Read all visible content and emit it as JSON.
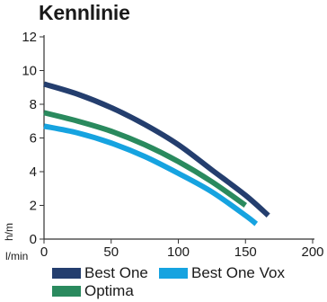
{
  "chart_data": {
    "type": "line",
    "title": "Kennlinie",
    "ylabel": "h/m",
    "xlabel": "l/min",
    "xlim": [
      0,
      200
    ],
    "ylim": [
      0,
      12
    ],
    "xticks": [
      0,
      50,
      100,
      150,
      200
    ],
    "yticks": [
      0,
      2,
      4,
      6,
      8,
      10,
      12
    ],
    "grid": false,
    "legend_position": "bottom",
    "series": [
      {
        "name": "Best One",
        "color": "#243e6e",
        "x": [
          0,
          25,
          50,
          75,
          100,
          125,
          150,
          167
        ],
        "y": [
          9.2,
          8.6,
          7.8,
          6.8,
          5.6,
          4.1,
          2.6,
          1.4
        ]
      },
      {
        "name": "Best One Vox",
        "color": "#16a3e0",
        "x": [
          0,
          25,
          50,
          75,
          100,
          125,
          150,
          158
        ],
        "y": [
          6.7,
          6.3,
          5.7,
          4.9,
          3.9,
          2.8,
          1.4,
          0.9
        ]
      },
      {
        "name": "Optima",
        "color": "#2a8a5e",
        "x": [
          0,
          25,
          50,
          75,
          100,
          125,
          150
        ],
        "y": [
          7.5,
          7.0,
          6.4,
          5.6,
          4.6,
          3.4,
          2.0
        ]
      }
    ]
  }
}
